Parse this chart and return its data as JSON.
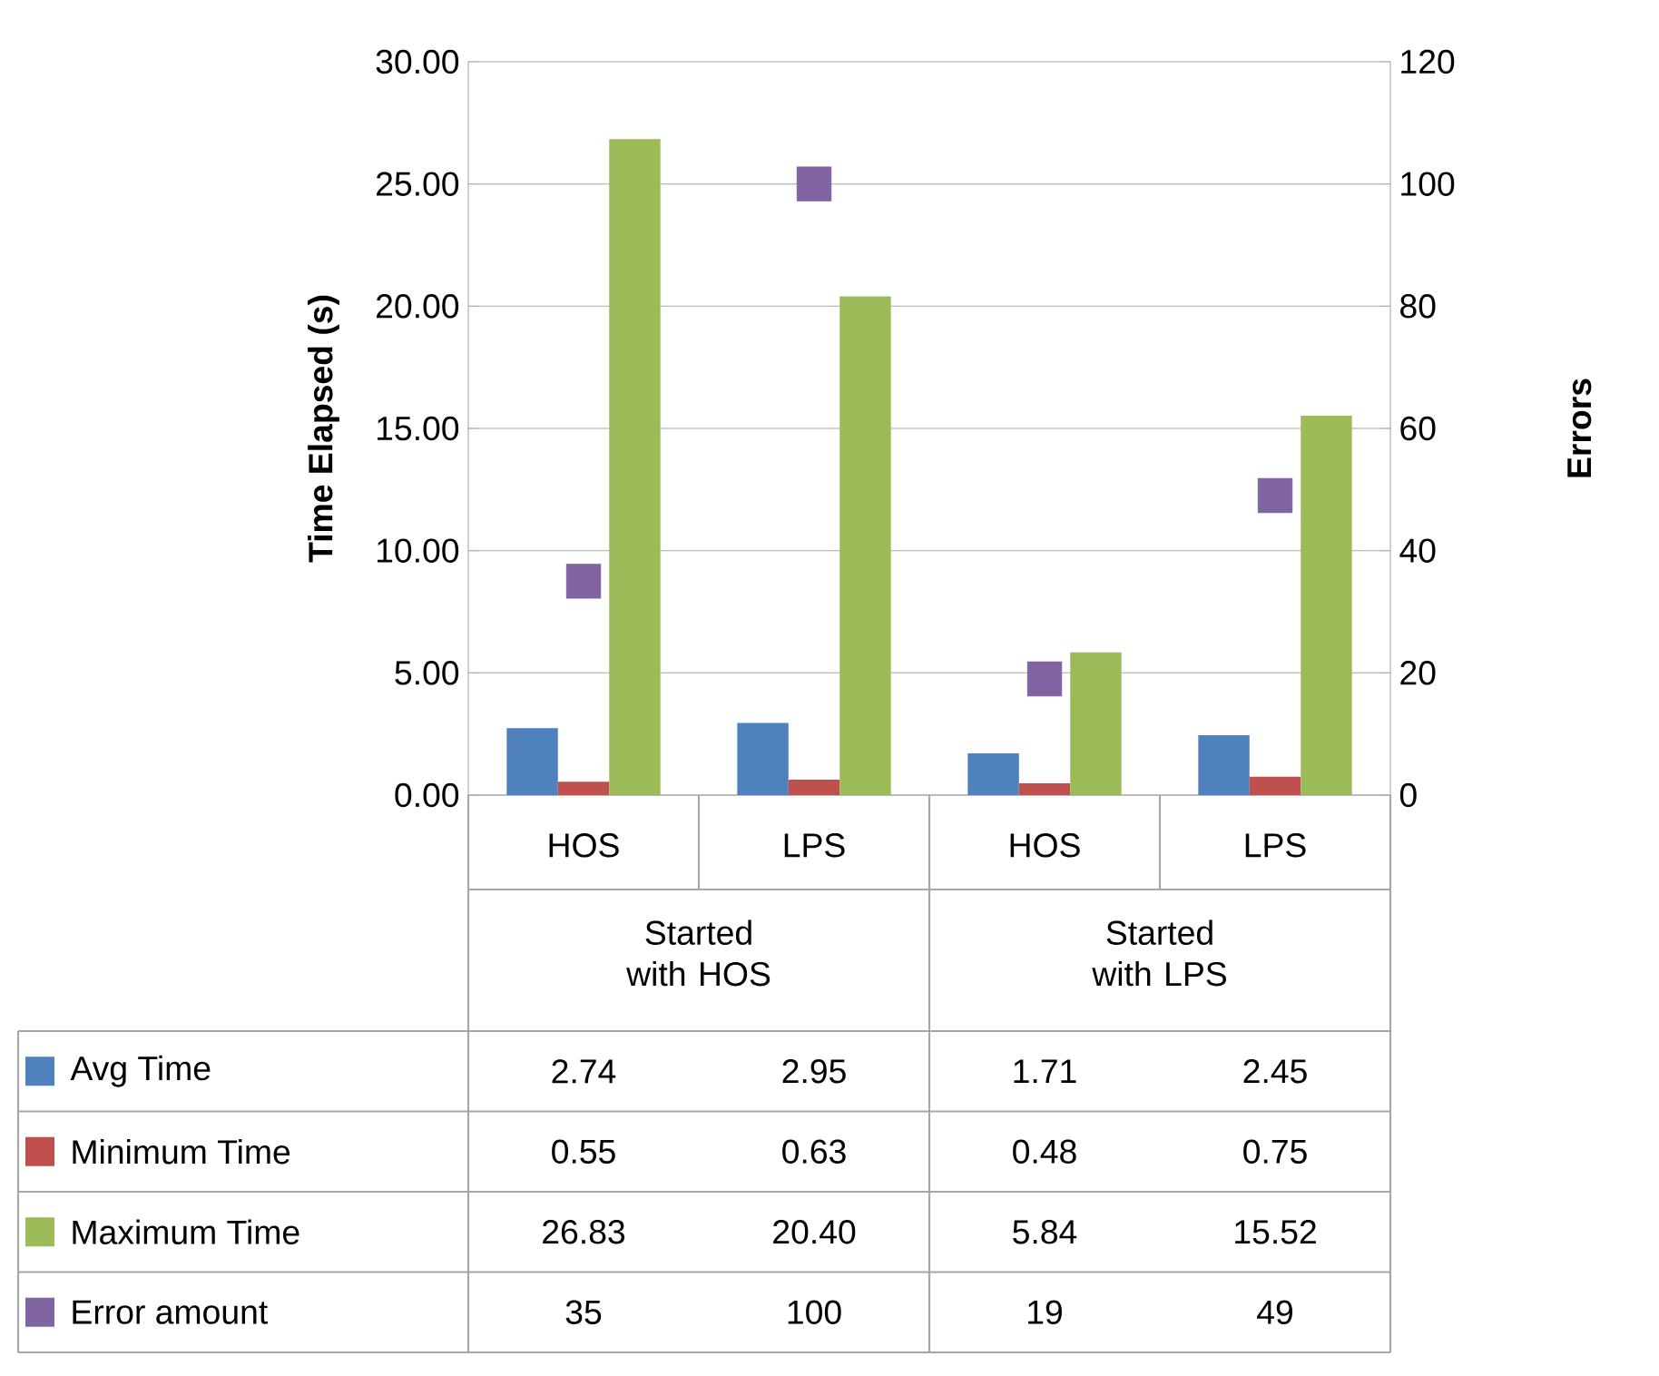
{
  "chart_data": {
    "type": "bar",
    "categories": [
      "HOS",
      "LPS",
      "HOS",
      "LPS"
    ],
    "annotations": [
      "Started with HOS",
      "Started with LPS"
    ],
    "ylabel": "Time Elapsed (s)",
    "y2label": "Errors",
    "ylim": [
      0,
      30
    ],
    "yticks": [
      {
        "value": 0,
        "label": "0.00"
      },
      {
        "value": 5,
        "label": "5.00"
      },
      {
        "value": 10,
        "label": "10.00"
      },
      {
        "value": 15,
        "label": "15.00"
      },
      {
        "value": 20,
        "label": "20.00"
      },
      {
        "value": 25,
        "label": "25.00"
      },
      {
        "value": 30,
        "label": "30.00"
      }
    ],
    "y2lim": [
      0,
      120
    ],
    "y2ticks": [
      0,
      20,
      40,
      60,
      80,
      100,
      120
    ],
    "grid": "y",
    "legend": "bottom",
    "series": [
      {
        "name": "Avg Time",
        "color": "#4f81bd",
        "values": [
          2.74,
          2.95,
          1.71,
          2.45
        ],
        "value_labels": [
          "2.74",
          "2.95",
          "1.71",
          "2.45"
        ]
      },
      {
        "name": "Minimum Time",
        "color": "#c0504d",
        "values": [
          0.55,
          0.63,
          0.48,
          0.75
        ],
        "value_labels": [
          "0.55",
          "0.63",
          "0.48",
          "0.75"
        ]
      },
      {
        "name": "Maximum Time",
        "color": "#9bbb59",
        "values": [
          26.83,
          20.4,
          5.84,
          15.52
        ],
        "value_labels": [
          "26.83",
          "20.40",
          "5.84",
          "15.52"
        ]
      },
      {
        "name": "Error amount",
        "type": "scatter",
        "axis": "y2",
        "marker": "square",
        "color": "#8064a2",
        "values": [
          35,
          100,
          19,
          49
        ],
        "value_labels": [
          "35",
          "100",
          "19",
          "49"
        ]
      }
    ]
  }
}
